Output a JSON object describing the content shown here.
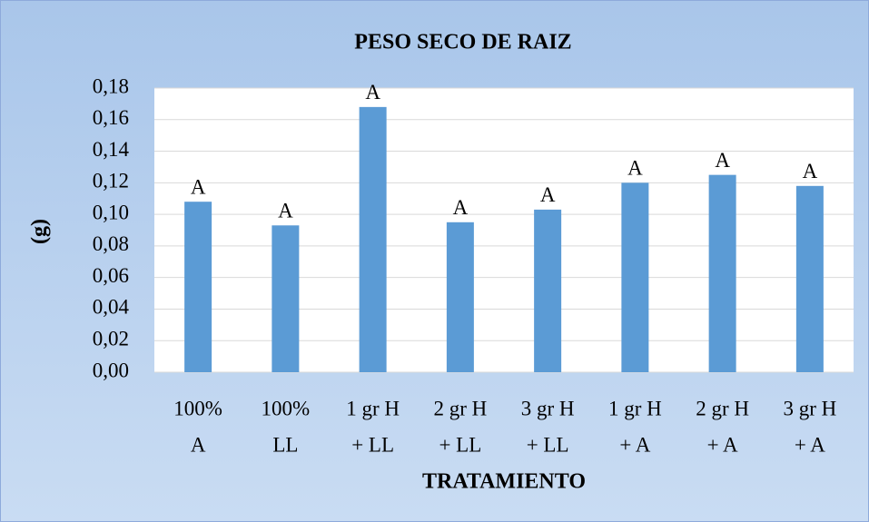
{
  "chart_data": {
    "type": "bar",
    "title": "PESO SECO DE RAIZ",
    "xlabel": "TRATAMIENTO",
    "ylabel": "(g)",
    "categories": [
      [
        "100%",
        "A"
      ],
      [
        "100%",
        "LL"
      ],
      [
        "1 gr H",
        "+ LL"
      ],
      [
        "2 gr H",
        "+ LL"
      ],
      [
        "3 gr H",
        "+ LL"
      ],
      [
        "1 gr H",
        "+ A"
      ],
      [
        "2 gr H",
        "+ A"
      ],
      [
        "3 gr H",
        "+ A"
      ]
    ],
    "values": [
      0.108,
      0.093,
      0.168,
      0.095,
      0.103,
      0.12,
      0.125,
      0.118
    ],
    "annotations": [
      "A",
      "A",
      "A",
      "A",
      "A",
      "A",
      "A",
      "A"
    ],
    "color": "#5b9bd5",
    "ylim": [
      0,
      0.18
    ],
    "yticks": [
      {
        "value": 0,
        "label": "0,00"
      },
      {
        "value": 0.02,
        "label": "0,02"
      },
      {
        "value": 0.04,
        "label": "0,04"
      },
      {
        "value": 0.06,
        "label": "0,06"
      },
      {
        "value": 0.08,
        "label": "0,08"
      },
      {
        "value": 0.1,
        "label": "0,10"
      },
      {
        "value": 0.12,
        "label": "0,12"
      },
      {
        "value": 0.14,
        "label": "0,14"
      },
      {
        "value": 0.16,
        "label": "0,16"
      },
      {
        "value": 0.18,
        "label": "0,18"
      }
    ],
    "grid": true
  }
}
